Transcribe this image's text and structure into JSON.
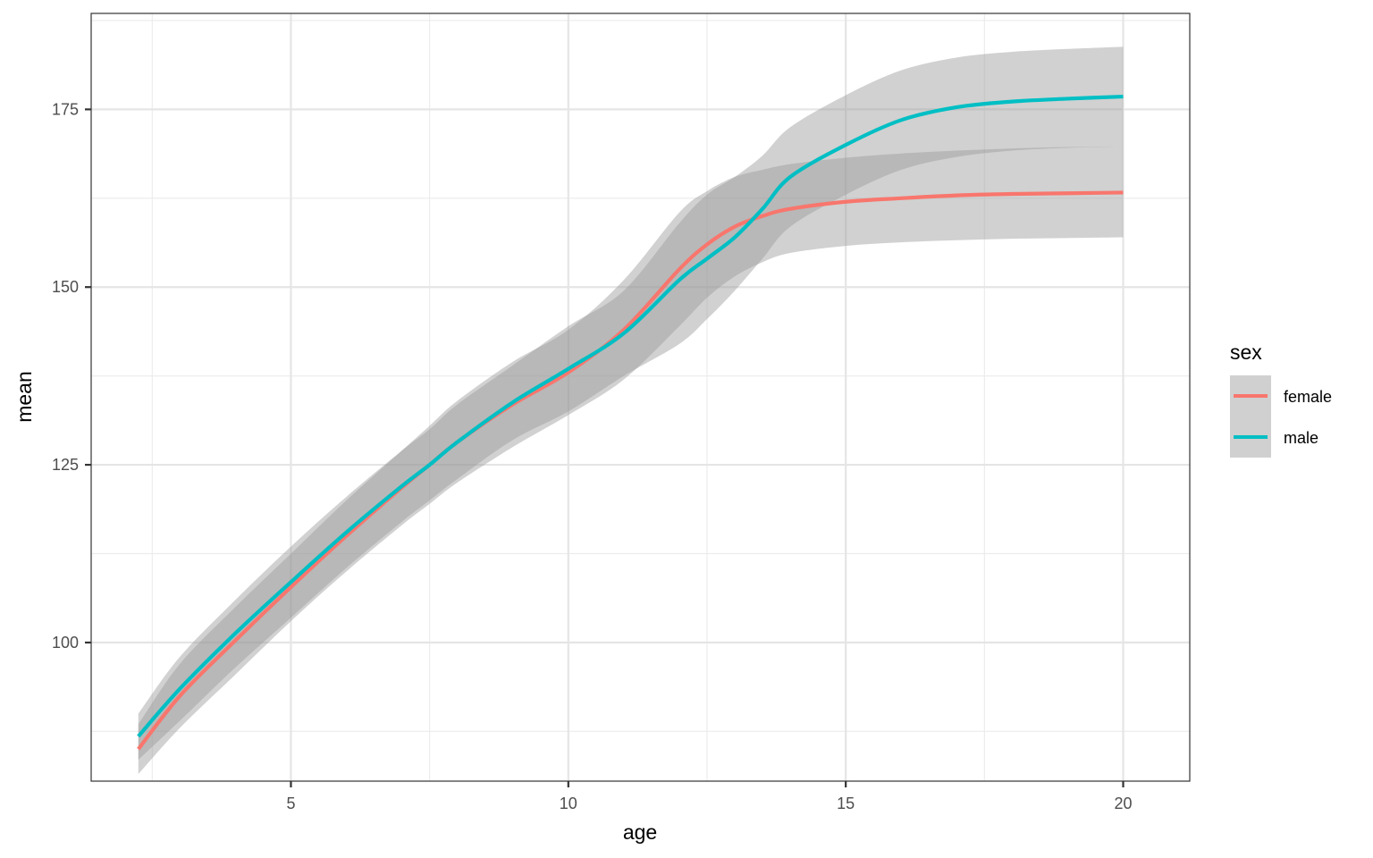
{
  "chart_data": {
    "type": "line",
    "title": "",
    "xlabel": "age",
    "ylabel": "mean",
    "xlim": [
      1.4,
      21.2
    ],
    "ylim": [
      80.5,
      188.5
    ],
    "x_ticks": [
      5,
      10,
      15,
      20
    ],
    "x_tick_labels": [
      "5",
      "10",
      "15",
      "20"
    ],
    "y_ticks": [
      100,
      125,
      150,
      175
    ],
    "y_tick_labels": [
      "100",
      "125",
      "150",
      "175"
    ],
    "grid": true,
    "legend": {
      "title": "sex",
      "position": "right",
      "entries": [
        "female",
        "male"
      ]
    },
    "series": [
      {
        "name": "female",
        "color": "#F8766D",
        "x": [
          2.25,
          3,
          4,
          5,
          6,
          7,
          7.5,
          8,
          9,
          10,
          11,
          12,
          12.5,
          13,
          13.5,
          14,
          15,
          16,
          17,
          18,
          19,
          20
        ],
        "y": [
          85.0,
          92.5,
          100.3,
          107.8,
          115.0,
          121.8,
          125.0,
          128.2,
          133.5,
          138.0,
          144.0,
          152.5,
          156.0,
          158.5,
          160.0,
          161.0,
          162.0,
          162.5,
          162.9,
          163.1,
          163.2,
          163.3
        ],
        "lower": [
          81.5,
          88.0,
          95.5,
          103.0,
          110.0,
          116.5,
          119.5,
          122.5,
          127.5,
          132.0,
          137.0,
          144.5,
          148.5,
          151.5,
          153.5,
          154.8,
          155.8,
          156.3,
          156.6,
          156.8,
          156.9,
          157.0
        ],
        "upper": [
          88.5,
          97.0,
          105.0,
          112.5,
          120.0,
          127.0,
          130.5,
          134.0,
          139.5,
          144.0,
          151.0,
          160.5,
          163.5,
          165.5,
          166.5,
          167.3,
          168.2,
          168.8,
          169.2,
          169.5,
          169.7,
          169.8
        ]
      },
      {
        "name": "male",
        "color": "#00BFC4",
        "x": [
          2.25,
          3,
          4,
          5,
          6,
          7,
          7.5,
          8,
          9,
          10,
          11,
          12,
          12.5,
          13,
          13.5,
          14,
          15,
          16,
          17,
          18,
          19,
          20
        ],
        "y": [
          86.8,
          93.5,
          101.3,
          108.5,
          115.5,
          122.0,
          125.0,
          128.2,
          133.8,
          138.5,
          143.5,
          151.0,
          154.0,
          157.0,
          161.0,
          165.5,
          170.0,
          173.5,
          175.3,
          176.1,
          176.5,
          176.8
        ],
        "lower": [
          83.5,
          89.0,
          96.5,
          103.5,
          110.5,
          117.0,
          120.0,
          123.0,
          128.5,
          132.5,
          137.5,
          142.0,
          145.5,
          149.5,
          154.0,
          158.5,
          163.0,
          166.5,
          168.3,
          169.2,
          169.6,
          169.8
        ],
        "upper": [
          90.0,
          98.0,
          106.0,
          113.5,
          120.5,
          127.0,
          130.0,
          133.5,
          139.0,
          144.5,
          149.5,
          159.0,
          163.0,
          165.5,
          168.5,
          172.5,
          177.0,
          180.5,
          182.3,
          183.1,
          183.5,
          183.8
        ]
      }
    ]
  },
  "axes": {
    "x_title": "age",
    "y_title": "mean"
  },
  "legend": {
    "title": "sex",
    "items": [
      {
        "label": "female",
        "color": "#F8766D"
      },
      {
        "label": "male",
        "color": "#00BFC4"
      }
    ]
  }
}
